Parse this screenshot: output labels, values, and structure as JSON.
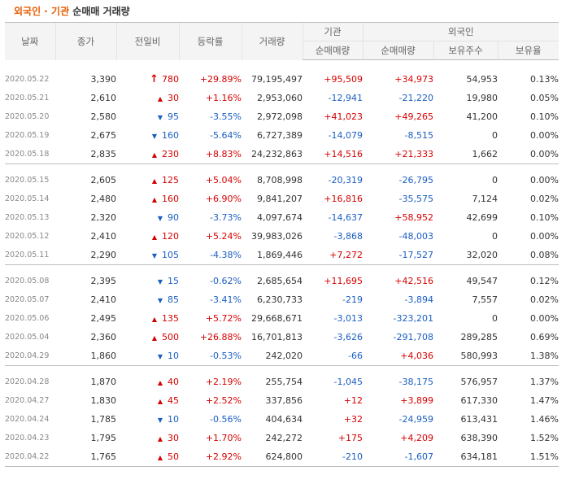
{
  "title": {
    "part1": "외국인 · 기관",
    "part2": " 순매매 거래량"
  },
  "headers": {
    "date": "날짜",
    "close": "종가",
    "change": "전일비",
    "rate": "등락률",
    "volume": "거래량",
    "inst": "기관",
    "foreign": "외국인",
    "inst_net": "순매매량",
    "foreign_net": "순매매량",
    "foreign_hold": "보유주수",
    "foreign_ratio": "보유율"
  },
  "groups": [
    {
      "rows": [
        {
          "date": "2020.05.22",
          "close": "3,390",
          "dir": "limit",
          "change": "780",
          "rate": "+29.89%",
          "volume": "79,195,497",
          "inst": "+95,509",
          "foreign": "+34,973",
          "hold": "54,953",
          "ratio": "0.13%"
        },
        {
          "date": "2020.05.21",
          "close": "2,610",
          "dir": "up",
          "change": "30",
          "rate": "+1.16%",
          "volume": "2,953,060",
          "inst": "-12,941",
          "foreign": "-21,220",
          "hold": "19,980",
          "ratio": "0.05%"
        },
        {
          "date": "2020.05.20",
          "close": "2,580",
          "dir": "down",
          "change": "95",
          "rate": "-3.55%",
          "volume": "2,972,098",
          "inst": "+41,023",
          "foreign": "+49,265",
          "hold": "41,200",
          "ratio": "0.10%"
        },
        {
          "date": "2020.05.19",
          "close": "2,675",
          "dir": "down",
          "change": "160",
          "rate": "-5.64%",
          "volume": "6,727,389",
          "inst": "-14,079",
          "foreign": "-8,515",
          "hold": "0",
          "ratio": "0.00%"
        },
        {
          "date": "2020.05.18",
          "close": "2,835",
          "dir": "up",
          "change": "230",
          "rate": "+8.83%",
          "volume": "24,232,863",
          "inst": "+14,516",
          "foreign": "+21,333",
          "hold": "1,662",
          "ratio": "0.00%"
        }
      ]
    },
    {
      "rows": [
        {
          "date": "2020.05.15",
          "close": "2,605",
          "dir": "up",
          "change": "125",
          "rate": "+5.04%",
          "volume": "8,708,998",
          "inst": "-20,319",
          "foreign": "-26,795",
          "hold": "0",
          "ratio": "0.00%"
        },
        {
          "date": "2020.05.14",
          "close": "2,480",
          "dir": "up",
          "change": "160",
          "rate": "+6.90%",
          "volume": "9,841,207",
          "inst": "+16,816",
          "foreign": "-35,575",
          "hold": "7,124",
          "ratio": "0.02%"
        },
        {
          "date": "2020.05.13",
          "close": "2,320",
          "dir": "down",
          "change": "90",
          "rate": "-3.73%",
          "volume": "4,097,674",
          "inst": "-14,637",
          "foreign": "+58,952",
          "hold": "42,699",
          "ratio": "0.10%"
        },
        {
          "date": "2020.05.12",
          "close": "2,410",
          "dir": "up",
          "change": "120",
          "rate": "+5.24%",
          "volume": "39,983,026",
          "inst": "-3,868",
          "foreign": "-48,003",
          "hold": "0",
          "ratio": "0.00%"
        },
        {
          "date": "2020.05.11",
          "close": "2,290",
          "dir": "down",
          "change": "105",
          "rate": "-4.38%",
          "volume": "1,869,446",
          "inst": "+7,272",
          "foreign": "-17,527",
          "hold": "32,020",
          "ratio": "0.08%"
        }
      ]
    },
    {
      "rows": [
        {
          "date": "2020.05.08",
          "close": "2,395",
          "dir": "down",
          "change": "15",
          "rate": "-0.62%",
          "volume": "2,685,654",
          "inst": "+11,695",
          "foreign": "+42,516",
          "hold": "49,547",
          "ratio": "0.12%"
        },
        {
          "date": "2020.05.07",
          "close": "2,410",
          "dir": "down",
          "change": "85",
          "rate": "-3.41%",
          "volume": "6,230,733",
          "inst": "-219",
          "foreign": "-3,894",
          "hold": "7,557",
          "ratio": "0.02%"
        },
        {
          "date": "2020.05.06",
          "close": "2,495",
          "dir": "up",
          "change": "135",
          "rate": "+5.72%",
          "volume": "29,668,671",
          "inst": "-3,013",
          "foreign": "-323,201",
          "hold": "0",
          "ratio": "0.00%"
        },
        {
          "date": "2020.05.04",
          "close": "2,360",
          "dir": "up",
          "change": "500",
          "rate": "+26.88%",
          "volume": "16,701,813",
          "inst": "-3,626",
          "foreign": "-291,708",
          "hold": "289,285",
          "ratio": "0.69%"
        },
        {
          "date": "2020.04.29",
          "close": "1,860",
          "dir": "down",
          "change": "10",
          "rate": "-0.53%",
          "volume": "242,020",
          "inst": "-66",
          "foreign": "+4,036",
          "hold": "580,993",
          "ratio": "1.38%"
        }
      ]
    },
    {
      "rows": [
        {
          "date": "2020.04.28",
          "close": "1,870",
          "dir": "up",
          "change": "40",
          "rate": "+2.19%",
          "volume": "255,754",
          "inst": "-1,045",
          "foreign": "-38,175",
          "hold": "576,957",
          "ratio": "1.37%"
        },
        {
          "date": "2020.04.27",
          "close": "1,830",
          "dir": "up",
          "change": "45",
          "rate": "+2.52%",
          "volume": "337,856",
          "inst": "+12",
          "foreign": "+3,899",
          "hold": "617,330",
          "ratio": "1.47%"
        },
        {
          "date": "2020.04.24",
          "close": "1,785",
          "dir": "down",
          "change": "10",
          "rate": "-0.56%",
          "volume": "404,634",
          "inst": "+32",
          "foreign": "-24,959",
          "hold": "613,431",
          "ratio": "1.46%"
        },
        {
          "date": "2020.04.23",
          "close": "1,795",
          "dir": "up",
          "change": "30",
          "rate": "+1.70%",
          "volume": "242,272",
          "inst": "+175",
          "foreign": "+4,209",
          "hold": "638,390",
          "ratio": "1.52%"
        },
        {
          "date": "2020.04.22",
          "close": "1,765",
          "dir": "up",
          "change": "50",
          "rate": "+2.92%",
          "volume": "624,800",
          "inst": "-210",
          "foreign": "-1,607",
          "hold": "634,181",
          "ratio": "1.51%"
        }
      ]
    }
  ]
}
